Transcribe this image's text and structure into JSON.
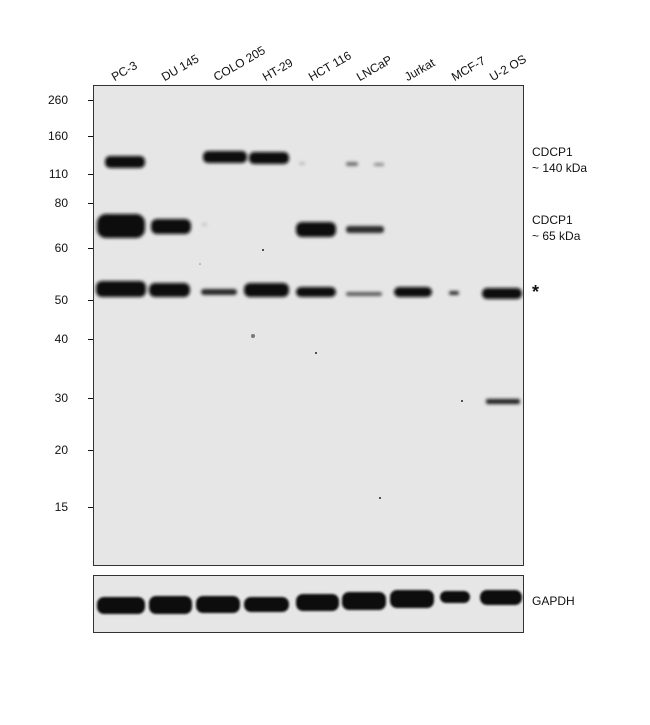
{
  "lanes": [
    "PC-3",
    "DU 145",
    "COLO 205",
    "HT-29",
    "HCT 116",
    "LNCaP",
    "Jurkat",
    "MCF-7",
    "U-2 OS"
  ],
  "markers": [
    "260",
    "160",
    "110",
    "80",
    "60",
    "50",
    "40",
    "30",
    "20",
    "15"
  ],
  "annotations": {
    "cdcp1_140_line1": "CDCP1",
    "cdcp1_140_line2": "~ 140 kDa",
    "cdcp1_65_line1": "CDCP1",
    "cdcp1_65_line2": "~ 65 kDa",
    "nonspecific": "*",
    "loading_control": "GAPDH"
  }
}
